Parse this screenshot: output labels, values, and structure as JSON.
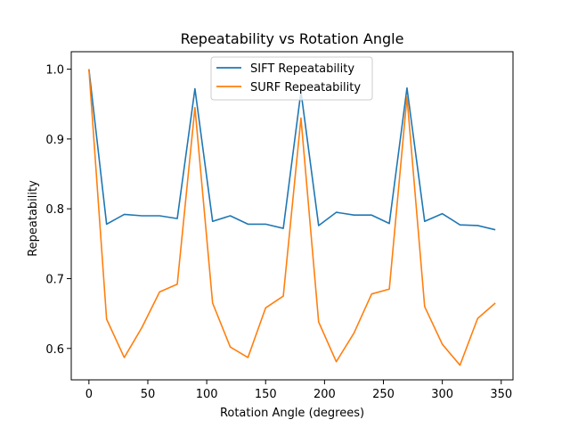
{
  "chart_data": {
    "type": "line",
    "title": "Repeatability vs Rotation Angle",
    "xlabel": "Rotation Angle (degrees)",
    "ylabel": "Repeatability",
    "xlim": [
      -15,
      360
    ],
    "ylim": [
      0.555,
      1.025
    ],
    "xticks": [
      0,
      50,
      100,
      150,
      200,
      250,
      300,
      350
    ],
    "yticks": [
      0.6,
      0.7,
      0.8,
      0.9,
      1.0
    ],
    "ytick_labels": [
      "0.6",
      "0.7",
      "0.8",
      "0.9",
      "1.0"
    ],
    "legend_position": "upper center",
    "grid": false,
    "x": [
      0,
      15,
      30,
      45,
      60,
      75,
      90,
      105,
      120,
      135,
      150,
      165,
      180,
      195,
      210,
      225,
      240,
      255,
      270,
      285,
      300,
      315,
      330,
      345
    ],
    "series": [
      {
        "name": "SIFT Repeatability",
        "color": "#1f77b4",
        "values": [
          1.0,
          0.778,
          0.792,
          0.79,
          0.79,
          0.786,
          0.972,
          0.782,
          0.79,
          0.778,
          0.778,
          0.772,
          0.968,
          0.776,
          0.795,
          0.791,
          0.791,
          0.779,
          0.973,
          0.782,
          0.793,
          0.777,
          0.776,
          0.77
        ]
      },
      {
        "name": "SURF Repeatability",
        "color": "#ff7f0e",
        "values": [
          1.0,
          0.642,
          0.587,
          0.63,
          0.681,
          0.692,
          0.945,
          0.665,
          0.602,
          0.587,
          0.658,
          0.675,
          0.93,
          0.638,
          0.581,
          0.622,
          0.678,
          0.685,
          0.96,
          0.66,
          0.606,
          0.576,
          0.643,
          0.665
        ]
      }
    ]
  }
}
